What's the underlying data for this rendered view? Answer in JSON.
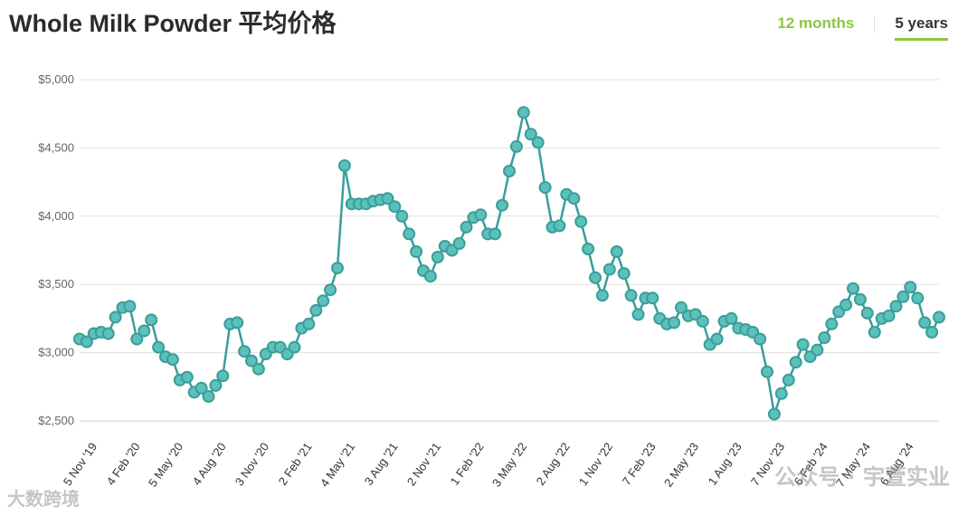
{
  "header": {
    "title": "Whole Milk Powder 平均价格",
    "tabs": [
      {
        "label": "12 months",
        "active": false
      },
      {
        "label": "5 years",
        "active": true
      }
    ]
  },
  "watermarks": {
    "left": "大数跨境",
    "right": "公众号 · 宇萱实业"
  },
  "colors": {
    "line": "#3a9e9a",
    "marker_fill": "#5cc0bb",
    "marker_stroke": "#3a9e9a",
    "grid": "#e0e0e0",
    "accent": "#8cc63f"
  },
  "chart_data": {
    "type": "line",
    "title": "Whole Milk Powder 平均价格",
    "xlabel": "",
    "ylabel": "",
    "ylim": [
      2500,
      5000
    ],
    "yticks": [
      {
        "value": 2500,
        "label": "$2,500"
      },
      {
        "value": 3000,
        "label": "$3,000"
      },
      {
        "value": 3500,
        "label": "$3,500"
      },
      {
        "value": 4000,
        "label": "$4,000"
      },
      {
        "value": 4500,
        "label": "$4,500"
      },
      {
        "value": 5000,
        "label": "$5,000"
      }
    ],
    "xtick_labels": [
      {
        "index": 2,
        "label": "5 Nov '19"
      },
      {
        "index": 8,
        "label": "4 Feb '20"
      },
      {
        "index": 14,
        "label": "5 May '20"
      },
      {
        "index": 20,
        "label": "4 Aug '20"
      },
      {
        "index": 26,
        "label": "3 Nov '20"
      },
      {
        "index": 32,
        "label": "2 Feb '21"
      },
      {
        "index": 38,
        "label": "4 May '21"
      },
      {
        "index": 44,
        "label": "3 Aug '21"
      },
      {
        "index": 50,
        "label": "2 Nov '21"
      },
      {
        "index": 56,
        "label": "1 Feb '22"
      },
      {
        "index": 62,
        "label": "3 May '22"
      },
      {
        "index": 68,
        "label": "2 Aug '22"
      },
      {
        "index": 74,
        "label": "1 Nov '22"
      },
      {
        "index": 80,
        "label": "7 Feb '23"
      },
      {
        "index": 86,
        "label": "2 May '23"
      },
      {
        "index": 92,
        "label": "1 Aug '23"
      },
      {
        "index": 98,
        "label": "7 Nov '23"
      },
      {
        "index": 104,
        "label": "6 Feb '24"
      },
      {
        "index": 110,
        "label": "7 May '24"
      },
      {
        "index": 116,
        "label": "6 Aug '24"
      }
    ],
    "series": [
      {
        "values": [
          3100,
          3080,
          3140,
          3150,
          3140,
          3260,
          3330,
          3340,
          3100,
          3160,
          3240,
          3040,
          2970,
          2950,
          2800,
          2820,
          2710,
          2740,
          2680,
          2760,
          2830,
          3210,
          3220,
          3010,
          2940,
          2880,
          2990,
          3040,
          3040,
          2990,
          3040,
          3180,
          3210,
          3310,
          3380,
          3460,
          3620,
          4370,
          4090,
          4090,
          4090,
          4110,
          4120,
          4130,
          4070,
          4000,
          3870,
          3740,
          3600,
          3560,
          3700,
          3780,
          3750,
          3800,
          3920,
          3990,
          4010,
          3870,
          3870,
          4080,
          4330,
          4510,
          4760,
          4600,
          4540,
          4210,
          3920,
          3930,
          4160,
          4130,
          3960,
          3760,
          3550,
          3420,
          3610,
          3740,
          3580,
          3420,
          3280,
          3400,
          3400,
          3250,
          3210,
          3220,
          3330,
          3270,
          3280,
          3230,
          3060,
          3100,
          3230,
          3250,
          3180,
          3170,
          3150,
          3100,
          2860,
          2550,
          2700,
          2800,
          2930,
          3060,
          2970,
          3020,
          3110,
          3210,
          3300,
          3350,
          3470,
          3390,
          3290,
          3150,
          3250,
          3270,
          3340,
          3410,
          3480,
          3400,
          3220,
          3150,
          3260
        ]
      }
    ]
  }
}
